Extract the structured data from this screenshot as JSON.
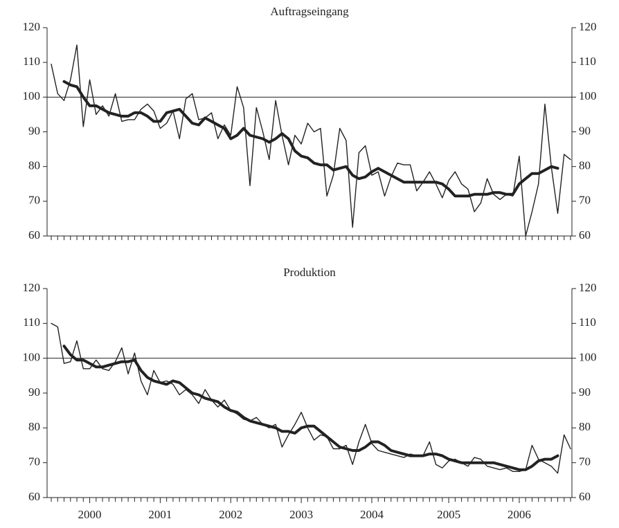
{
  "chart_data": [
    {
      "type": "line",
      "title": "Auftragseingang",
      "ylim": [
        60,
        120
      ],
      "yticks": [
        60,
        70,
        80,
        90,
        100,
        110,
        120
      ],
      "reference_line": 100,
      "series": [
        {
          "color": "#222222",
          "values": [
            109.5,
            101,
            99,
            105,
            115,
            91.5,
            105,
            95,
            97.5,
            94.5,
            101,
            93,
            93.5,
            93.5,
            96.5,
            98,
            96,
            91,
            92.5,
            96,
            88,
            99.5,
            101,
            93.5,
            94,
            95.5,
            88,
            92,
            89,
            103,
            97,
            74.5,
            97,
            90,
            82,
            99,
            89,
            80.5,
            89,
            86.5,
            92.5,
            90,
            91,
            71.5,
            77.5,
            91,
            87.5,
            62.5,
            84,
            86,
            77.5,
            78.5,
            71.5,
            77,
            81,
            80.5,
            80.5,
            73,
            75.5,
            78.5,
            75,
            71,
            76,
            78.5,
            75,
            73.5,
            67,
            69.5,
            76.5,
            72,
            70.5,
            72,
            71.5,
            83,
            60,
            67,
            75,
            98,
            80,
            66.5,
            83.5,
            82
          ]
        },
        {
          "color": "#222222",
          "values": [
            null,
            null,
            104.5,
            103.5,
            103,
            100,
            97.5,
            97.5,
            96.5,
            95.5,
            95,
            94.5,
            94.5,
            95.5,
            95.5,
            94.5,
            93,
            93,
            95.5,
            96,
            96.5,
            94.5,
            92.5,
            92,
            94,
            93,
            92,
            91,
            88,
            89,
            91,
            89,
            88.5,
            88,
            87,
            88,
            89.5,
            88,
            84.5,
            83,
            82.5,
            81,
            80.5,
            80.5,
            79,
            79.5,
            80,
            77.5,
            76.5,
            77,
            78.5,
            79.5,
            78.5,
            77.5,
            76.5,
            75.5,
            75.5,
            75.5,
            75.5,
            75.5,
            75.5,
            75,
            73.5,
            71.5,
            71.5,
            71.5,
            72,
            72,
            72,
            72.5,
            72.5,
            72,
            72,
            75,
            76.5,
            78,
            78,
            79,
            80,
            79.5,
            null,
            null
          ]
        }
      ]
    },
    {
      "type": "line",
      "title": "Produktion",
      "ylim": [
        60,
        120
      ],
      "yticks": [
        60,
        70,
        80,
        90,
        100,
        110,
        120
      ],
      "reference_line": 100,
      "categories": [
        null,
        null,
        null,
        null,
        null,
        null,
        "2000",
        null,
        null,
        null,
        null,
        null,
        null,
        null,
        null,
        null,
        null,
        "2001",
        null,
        null,
        null,
        null,
        null,
        null,
        null,
        null,
        null,
        null,
        "2002",
        null,
        null,
        null,
        null,
        null,
        null,
        null,
        null,
        null,
        null,
        "2003",
        null,
        null,
        null,
        null,
        null,
        null,
        null,
        null,
        null,
        null,
        "2004",
        null,
        null,
        null,
        null,
        null,
        null,
        null,
        null,
        null,
        null,
        null,
        "2005",
        null,
        null,
        null,
        null,
        null,
        null,
        null,
        null,
        null,
        null,
        "2006",
        null,
        null,
        null,
        null,
        null,
        null,
        null,
        null
      ],
      "series": [
        {
          "color": "#222222",
          "values": [
            110,
            109,
            98.5,
            99,
            105,
            97,
            97,
            99.5,
            97,
            96.5,
            99,
            103,
            95.5,
            101.5,
            93.5,
            89.5,
            96.5,
            93,
            93.5,
            92.5,
            89.5,
            91,
            89.5,
            87,
            91,
            88,
            86,
            88,
            85,
            84,
            82.5,
            82,
            83,
            81,
            80,
            81,
            74.5,
            78,
            81,
            84.5,
            80,
            76.5,
            78,
            77.5,
            74,
            74,
            75,
            69.5,
            76,
            81,
            75.5,
            73.5,
            73,
            72.5,
            72,
            71.5,
            72.5,
            72,
            72,
            76,
            69.5,
            68.5,
            70.5,
            71,
            70,
            69,
            71.5,
            71,
            69,
            68.5,
            68,
            68.5,
            67.5,
            67.5,
            68,
            75,
            71,
            70,
            69,
            67,
            78,
            74
          ]
        },
        {
          "color": "#222222",
          "values": [
            null,
            null,
            103.5,
            101,
            99.5,
            99.5,
            98.5,
            97.5,
            97.5,
            98,
            98.5,
            99,
            99,
            99.5,
            96.5,
            94.5,
            93.5,
            93,
            92.5,
            93.5,
            93,
            91.5,
            90,
            89.5,
            88.5,
            88,
            87.5,
            86,
            85,
            84.5,
            83,
            82,
            81.5,
            81,
            80.5,
            80,
            79,
            79,
            78.5,
            80,
            80.5,
            80.5,
            79,
            77.5,
            76,
            74.5,
            74,
            73.5,
            73.5,
            74.5,
            76,
            76,
            75,
            73.5,
            73,
            72.5,
            72,
            72,
            72,
            72.5,
            72.5,
            72,
            71,
            70.5,
            70,
            70,
            70,
            70,
            70,
            70,
            69.5,
            69,
            68.5,
            68,
            68,
            69,
            70.5,
            71,
            71,
            72,
            null,
            null
          ]
        }
      ]
    }
  ]
}
